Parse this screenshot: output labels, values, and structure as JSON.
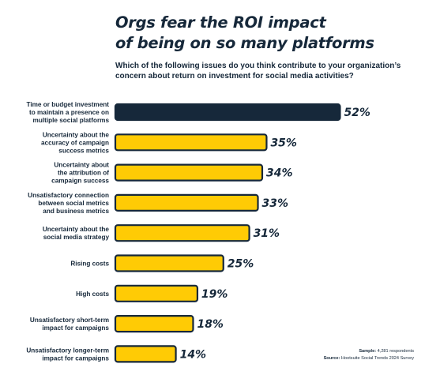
{
  "header": {
    "title_line1": "Orgs fear the ROI impact",
    "title_line2": "of being on so many platforms",
    "subtitle_line1": "Which of the following issues do you think contribute to your organization’s",
    "subtitle_line2": "concern about return on investment for social media activities?"
  },
  "colors": {
    "highlight": "#16283a",
    "bar": "#ffcb05",
    "outline": "#16283a"
  },
  "chart_data": {
    "type": "bar",
    "orientation": "horizontal",
    "categories": [
      [
        "Time or budget investment",
        "to maintain a presence on",
        "multiple social platforms"
      ],
      [
        "Uncertainty about the",
        "accuracy of campaign",
        "success metrics"
      ],
      [
        "Uncertainty about",
        "the attribution of",
        "campaign success"
      ],
      [
        "Unsatisfactory connection",
        "between social metrics",
        "and business metrics"
      ],
      [
        "Uncertainty about the",
        "social media strategy"
      ],
      [
        "Rising costs"
      ],
      [
        "High costs"
      ],
      [
        "Unsatisfactory short-term",
        "impact for campaigns"
      ],
      [
        "Unsatisfactory longer-term",
        "impact for campaigns"
      ]
    ],
    "values": [
      52,
      35,
      34,
      33,
      31,
      25,
      19,
      18,
      14
    ],
    "value_labels": [
      "52%",
      "35%",
      "34%",
      "33%",
      "31%",
      "25%",
      "19%",
      "18%",
      "14%"
    ],
    "highlighted_index": 0,
    "unit": "%"
  },
  "footer": {
    "sample_label": "Sample:",
    "sample_value": "4,281 respondents",
    "source_label": "Source:",
    "source_value": "Hootsuite Social Trends 2024 Survey"
  }
}
